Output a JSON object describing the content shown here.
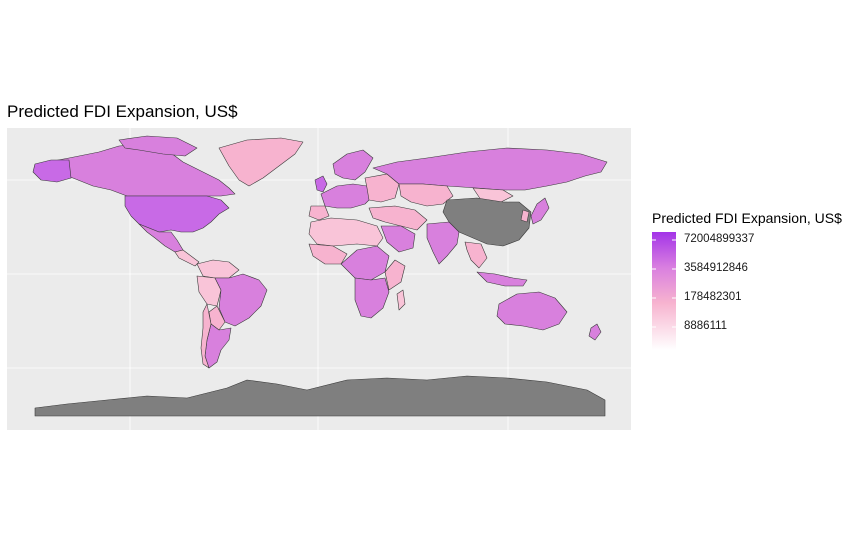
{
  "chart_data": {
    "type": "choropleth",
    "title": "Predicted FDI Expansion, US$",
    "legend": {
      "title": "Predicted FDI Expansion, US$",
      "placement": "right",
      "breaks": [
        "72004899337",
        "3584912846",
        "178482301",
        "8886111"
      ],
      "scale": "log",
      "gradient_colors": [
        "#a334e8",
        "#d97fe0",
        "#f7b3cf",
        "#ffffff"
      ]
    },
    "colors": {
      "panel_background": "#ebebeb",
      "grid": "#ffffff",
      "no_data": "#7f7f7f",
      "border": "#3a3a3a"
    },
    "grid": true,
    "regions": [
      {
        "name": "United States",
        "fill": "#c86ae6",
        "level": "very high"
      },
      {
        "name": "Canada",
        "fill": "#d880dd",
        "level": "high"
      },
      {
        "name": "Greenland",
        "fill": "#f7b3cf",
        "level": "medium"
      },
      {
        "name": "Russia",
        "fill": "#d880dd",
        "level": "high"
      },
      {
        "name": "China",
        "fill": "#7f7f7f",
        "level": "no data"
      },
      {
        "name": "Australia",
        "fill": "#d880dd",
        "level": "high"
      },
      {
        "name": "Brazil",
        "fill": "#d880dd",
        "level": "high"
      },
      {
        "name": "India",
        "fill": "#d880dd",
        "level": "high"
      },
      {
        "name": "Antarctica",
        "fill": "#7f7f7f",
        "level": "no data"
      },
      {
        "name": "Africa (most)",
        "fill": "#f9c4d8",
        "level": "low"
      }
    ]
  }
}
